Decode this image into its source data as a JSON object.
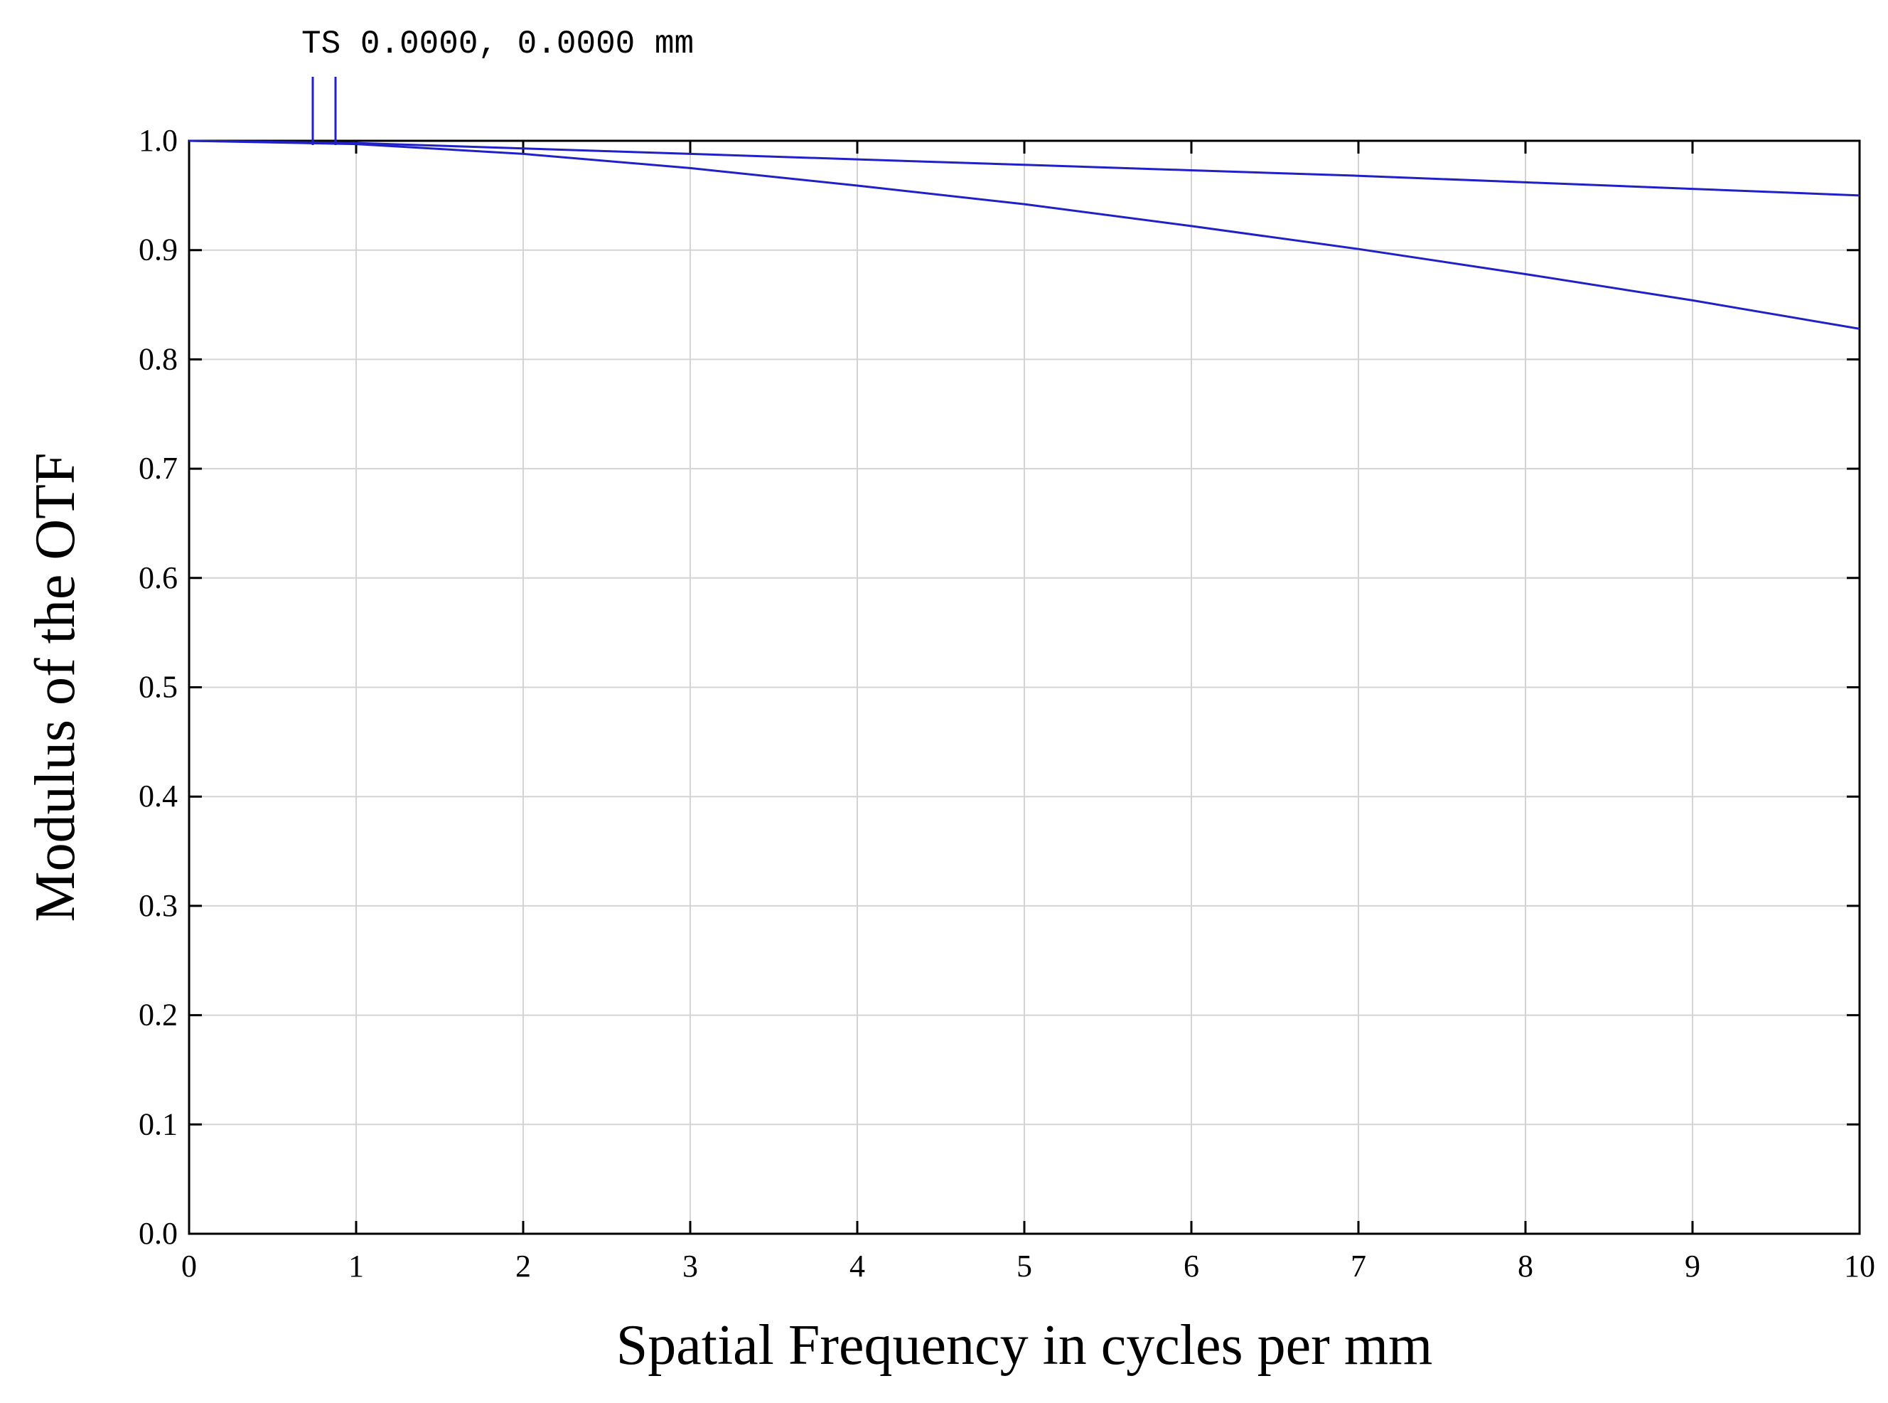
{
  "chart_data": {
    "type": "line",
    "title": "",
    "xlabel": "Spatial Frequency in cycles per mm",
    "ylabel": "Modulus of the OTF",
    "xlim": [
      0,
      10
    ],
    "ylim": [
      0,
      1
    ],
    "x_ticks": [
      0,
      1,
      2,
      3,
      4,
      5,
      6,
      7,
      8,
      9,
      10
    ],
    "x_tick_labels": [
      "0",
      "1",
      "2",
      "3",
      "4",
      "5",
      "6",
      "7",
      "8",
      "9",
      "10"
    ],
    "y_ticks": [
      0.0,
      0.1,
      0.2,
      0.3,
      0.4,
      0.5,
      0.6,
      0.7,
      0.8,
      0.9,
      1.0
    ],
    "y_tick_labels": [
      "0.0",
      "0.1",
      "0.2",
      "0.3",
      "0.4",
      "0.5",
      "0.6",
      "0.7",
      "0.8",
      "0.9",
      "1.0"
    ],
    "grid": true,
    "legend": {
      "placement": "top-left",
      "text": "TS 0.0000, 0.0000 mm"
    },
    "x": [
      0,
      1,
      2,
      3,
      4,
      5,
      6,
      7,
      8,
      9,
      10
    ],
    "series": [
      {
        "name": "T",
        "color": "#2020c8",
        "values": [
          1.0,
          0.998,
          0.993,
          0.988,
          0.983,
          0.978,
          0.973,
          0.968,
          0.962,
          0.956,
          0.95
        ]
      },
      {
        "name": "S",
        "color": "#2020c8",
        "values": [
          1.0,
          0.997,
          0.988,
          0.975,
          0.959,
          0.942,
          0.922,
          0.901,
          0.878,
          0.854,
          0.828
        ]
      }
    ]
  }
}
